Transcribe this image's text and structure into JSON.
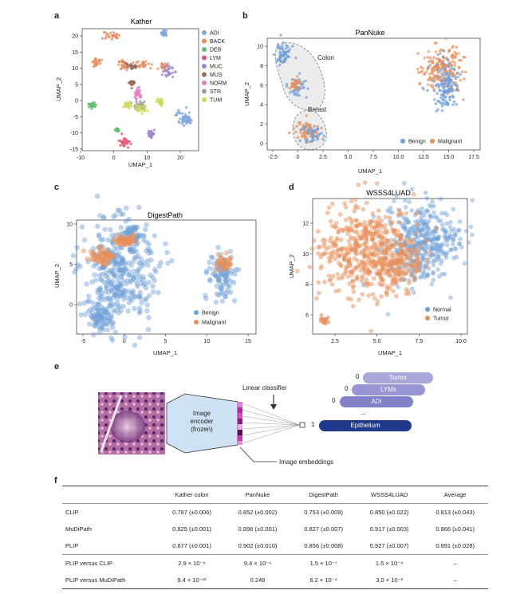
{
  "panels": {
    "a": {
      "letter": "a",
      "title": "Kather",
      "xlabel": "UMAP_1",
      "ylabel": "UMAP_2",
      "xticks": [
        "-10",
        "0",
        "10",
        "20"
      ],
      "yticks": [
        "20",
        "15",
        "10",
        "5",
        "0",
        "-5",
        "-10",
        "-15"
      ],
      "legend": [
        "ADI",
        "BACK",
        "DEB",
        "LYM",
        "MUC",
        "MUS",
        "NORM",
        "STR",
        "TUM"
      ]
    },
    "b": {
      "letter": "b",
      "title": "PanNuke",
      "xlabel": "UMAP_1",
      "ylabel": "UMAP_2",
      "xticks": [
        "-2.5",
        "0",
        "2.5",
        "5.0",
        "7.5",
        "10.0",
        "12.5",
        "15.0",
        "17.5"
      ],
      "yticks": [
        "10",
        "8",
        "6",
        "4",
        "2",
        "0"
      ],
      "annotations": {
        "colon": "Colon",
        "breast": "Breast"
      },
      "legend": [
        "Benign",
        "Malignant"
      ]
    },
    "c": {
      "letter": "c",
      "title": "DigestPath",
      "xlabel": "UMAP_1",
      "ylabel": "UMAP_2",
      "xticks": [
        "-5",
        "0",
        "5",
        "10",
        "15"
      ],
      "yticks": [
        "10",
        "5",
        "0"
      ],
      "legend": [
        "Benign",
        "Malignant"
      ]
    },
    "d": {
      "letter": "d",
      "title": "WSSS4LUAD",
      "xlabel": "UMAP_1",
      "ylabel": "UMAP_2",
      "xticks": [
        "2.5",
        "5.0",
        "7.5",
        "10.0"
      ],
      "yticks": [
        "12",
        "10",
        "8",
        "6"
      ],
      "legend": [
        "Normal",
        "Tumor"
      ]
    },
    "e": {
      "letter": "e",
      "encoder_line1": "Image",
      "encoder_line2": "encoder",
      "encoder_line3": "(frozen)",
      "linear_classifier": "Linear classifier",
      "embeddings": "Image embeddings",
      "classes": [
        {
          "label": "Tumor",
          "score": "0"
        },
        {
          "label": "LYMs",
          "score": "0"
        },
        {
          "label": "ADI",
          "score": "0"
        },
        {
          "label": "Epithelium",
          "score": "1"
        }
      ],
      "dots": "..."
    },
    "f": {
      "letter": "f"
    }
  },
  "colors": {
    "benign": "#6f9fd8",
    "malignant": "#e8905a",
    "ADI": "#7ea7de",
    "BACK": "#e58f5e",
    "DEB": "#5fbf6a",
    "LYM": "#e0556b",
    "MUC": "#9d86cf",
    "MUS": "#9b6b5a",
    "NORM": "#e07fc6",
    "STR": "#9a9a9a",
    "TUM": "#cfd85a"
  },
  "table": {
    "headers": [
      "",
      "Kather colon",
      "PanNuke",
      "DigestPath",
      "WSSS4LUAD",
      "Average"
    ],
    "rows": [
      [
        "CLIP",
        "0.797 (±0.006)",
        "0.852 (±0.002)",
        "0.753 (±0.009)",
        "0.850 (±0.022)",
        "0.813 (±0.043)"
      ],
      [
        "MuDiPath",
        "0.825 (±0.001)",
        "0.896 (±0.001)",
        "0.827 (±0.007)",
        "0.917 (±0.003)",
        "0.866 (±0.041)"
      ],
      [
        "PLIP",
        "0.877 (±0.001)",
        "0.902 (±0.010)",
        "0.856 (±0.008)",
        "0.927 (±0.007)",
        "0.891 (±0.028)"
      ],
      [
        "PLIP versus CLIP",
        "2.9 × 10⁻⁹",
        "9.4 × 10⁻⁶",
        "1.5 × 10⁻⁷",
        "1.5 × 10⁻⁴",
        "–"
      ],
      [
        "PLIP versus MuDiPath",
        "9.4 × 10⁻¹²",
        "0.249",
        "6.2 × 10⁻⁴",
        "3.0 × 10⁻²",
        "–"
      ]
    ]
  }
}
